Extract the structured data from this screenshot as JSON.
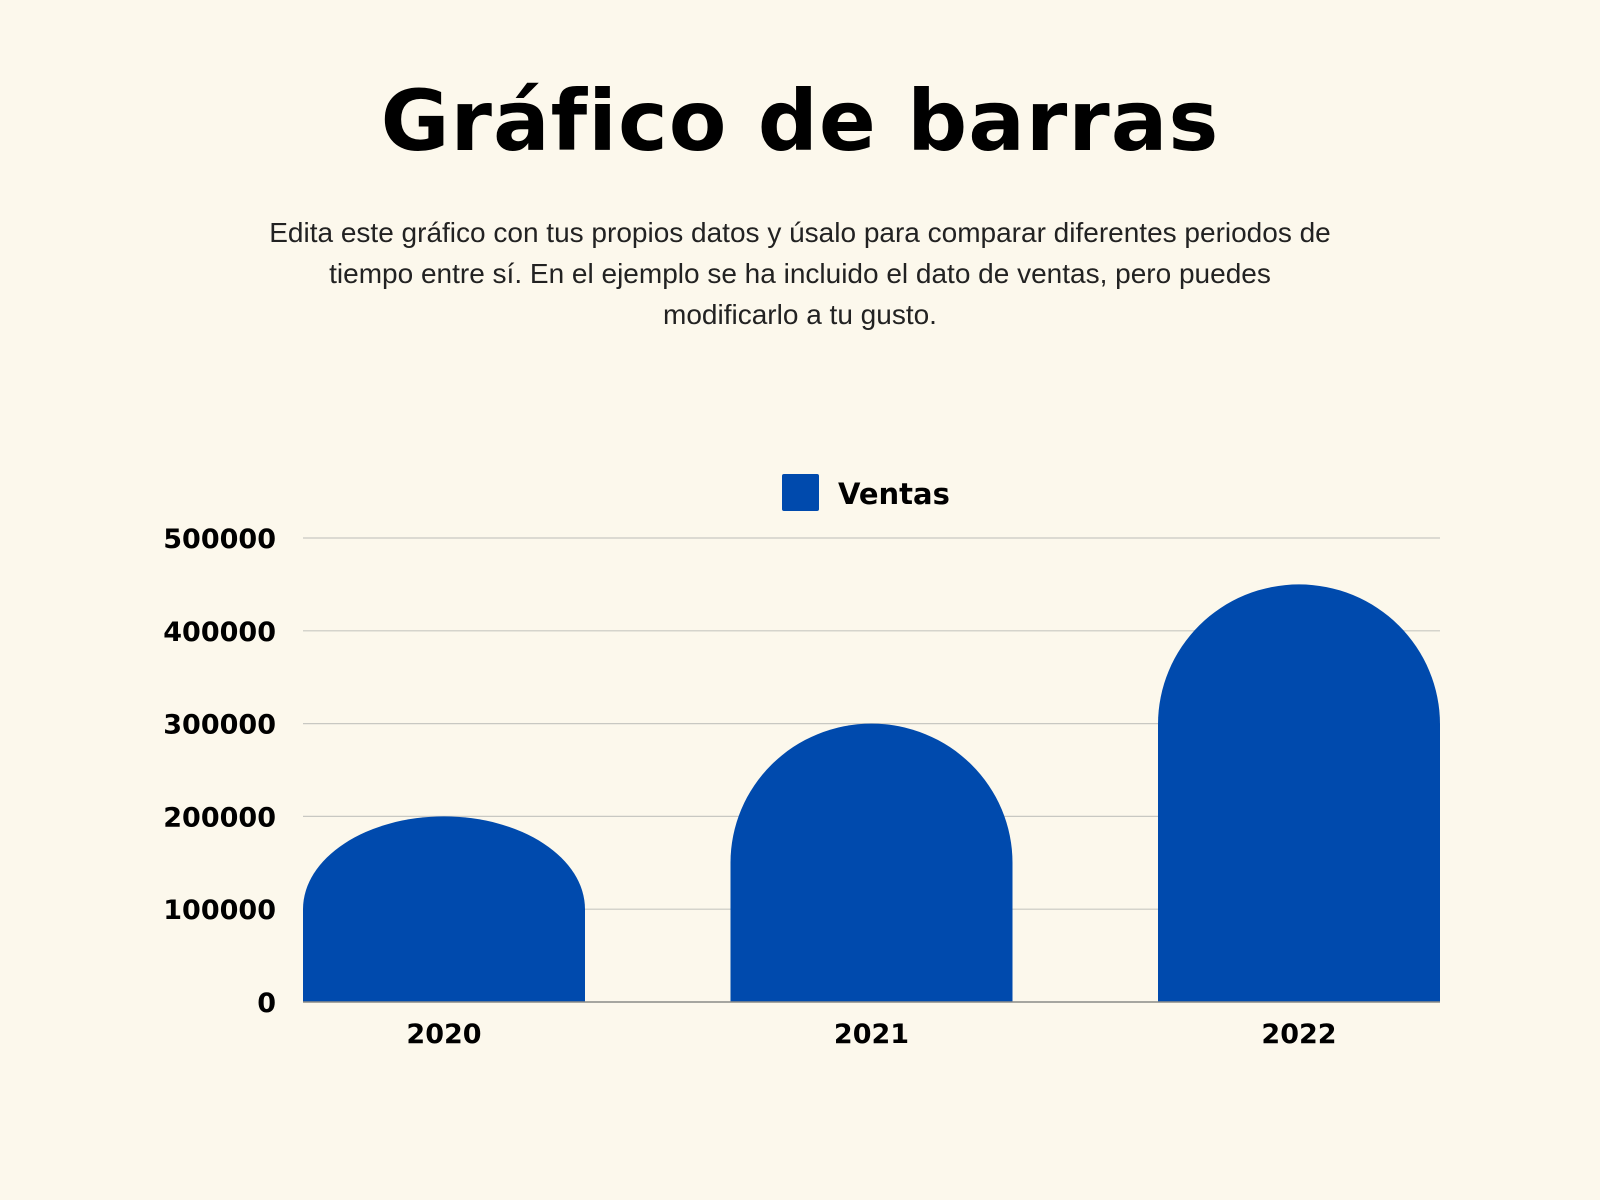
{
  "title": "Gráfico de barras",
  "subtitle": "Edita este gráfico con tus propios datos y úsalo para comparar diferentes periodos de tiempo entre sí. En el ejemplo se ha incluido el dato de ventas, pero puedes modificarlo a tu gusto.",
  "colors": {
    "background": "#fcf8ec",
    "bar": "#004aad",
    "grid": "#c8c8c2",
    "axis": "#8a8a86"
  },
  "chart_data": {
    "type": "bar",
    "categories": [
      "2020",
      "2021",
      "2022"
    ],
    "series": [
      {
        "name": "Ventas",
        "values": [
          200000,
          300000,
          450000
        ],
        "color": "#004aad"
      }
    ],
    "ylim": [
      0,
      500000
    ],
    "yticks": [
      0,
      100000,
      200000,
      300000,
      400000,
      500000
    ],
    "ytick_labels": [
      "0",
      "100000",
      "200000",
      "300000",
      "400000",
      "500000"
    ],
    "xlabel": "",
    "ylabel": "",
    "grid": true,
    "legend_position": "top-center",
    "bar_style": "rounded-top"
  }
}
